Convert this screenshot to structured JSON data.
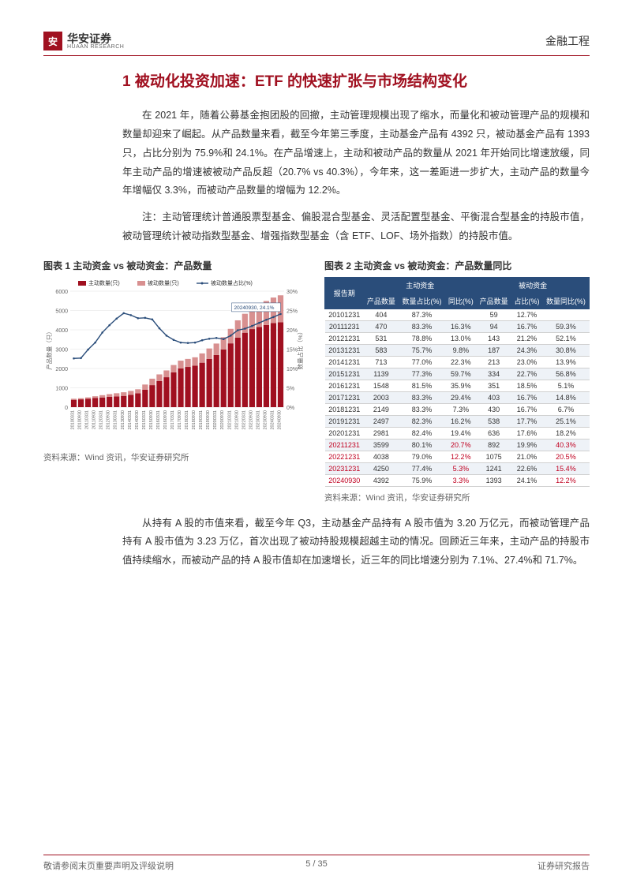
{
  "header": {
    "logo_cn": "华安证券",
    "logo_en": "HUAAN RESEARCH",
    "right": "金融工程"
  },
  "section_title": "1 被动化投资加速：ETF 的快速扩张与市场结构变化",
  "para1": "在 2021 年，随着公募基金抱团股的回撤，主动管理规模出现了缩水，而量化和被动管理产品的规模和数量却迎来了崛起。从产品数量来看，截至今年第三季度，主动基金产品有 4392 只，被动基金产品有 1393 只，占比分别为 75.9%和 24.1%。在产品增速上，主动和被动产品的数量从 2021 年开始同比增速放缓，同年主动产品的增速被被动产品反超（20.7% vs 40.3%），今年来，这一差距进一步扩大，主动产品的数量今年增幅仅 3.3%，而被动产品数量的增幅为 12.2%。",
  "para2": "注：主动管理统计普通股票型基金、偏股混合型基金、灵活配置型基金、平衡混合型基金的持股市值，被动管理统计被动指数型基金、增强指数型基金（含 ETF、LOF、场外指数）的持股市值。",
  "para3": "从持有 A 股的市值来看，截至今年 Q3，主动基金产品持有 A 股市值为 3.20 万亿元，而被动管理产品持有 A 股市值为 3.23 万亿，首次出现了被动持股规模超越主动的情况。回顾近三年来，主动产品的持股市值持续缩水，而被动产品的持 A 股市值却在加速增长，近三年的同比增速分别为 7.1%、27.4%和 71.7%。",
  "chart1": {
    "title": "图表 1 主动资金 vs 被动资金：产品数量",
    "legend": [
      "主动数量(只)",
      "被动数量(只)",
      "被动数量占比(%)"
    ],
    "y_left_max": 6000,
    "y_left_step": 1000,
    "y_right_max": 30,
    "y_right_step": 5,
    "y_left_label": "产品数量（只）",
    "y_right_label": "数量占比（%）",
    "annotation": "20240930, 24.1%",
    "colors": {
      "active_bar": "#a01020",
      "passive_bar": "#d89090",
      "line": "#2a4d7a",
      "grid": "#e0e0e0",
      "bg": "#ffffff"
    },
    "x_labels": [
      "20100331",
      "20100930",
      "20110331",
      "20110930",
      "20120331",
      "20120930",
      "20130331",
      "20130930",
      "20140331",
      "20140930",
      "20150331",
      "20150930",
      "20160331",
      "20160930",
      "20170331",
      "20170930",
      "20180331",
      "20180930",
      "20190331",
      "20190930",
      "20200331",
      "20200930",
      "20210331",
      "20210930",
      "20220331",
      "20220930",
      "20230331",
      "20230930",
      "20240331",
      "20240930"
    ],
    "active_values": [
      380,
      404,
      430,
      470,
      500,
      531,
      555,
      583,
      640,
      713,
      900,
      1139,
      1350,
      1548,
      1800,
      2003,
      2080,
      2149,
      2300,
      2497,
      2700,
      2981,
      3300,
      3599,
      3850,
      4038,
      4150,
      4250,
      4350,
      4392
    ],
    "passive_values": [
      55,
      59,
      75,
      94,
      120,
      143,
      165,
      187,
      200,
      213,
      270,
      334,
      345,
      351,
      380,
      403,
      415,
      430,
      480,
      538,
      590,
      636,
      750,
      892,
      980,
      1075,
      1160,
      1241,
      1320,
      1393
    ],
    "ratio_values": [
      12.6,
      12.7,
      14.9,
      16.7,
      19.3,
      21.2,
      22.9,
      24.3,
      23.8,
      23.0,
      23.1,
      22.7,
      20.4,
      18.5,
      17.4,
      16.7,
      16.6,
      16.7,
      17.3,
      17.7,
      17.9,
      17.6,
      18.5,
      19.9,
      20.3,
      21.0,
      21.8,
      22.6,
      23.3,
      24.1
    ]
  },
  "chart2": {
    "title": "图表 2 主动资金 vs 被动资金：产品数量同比",
    "group_headers": [
      "主动资金",
      "被动资金"
    ],
    "columns": [
      "报告期",
      "产品数量",
      "数量占比(%)",
      "同比(%)",
      "产品数量",
      "占比(%)",
      "数量同比(%)"
    ],
    "rows": [
      {
        "d": [
          "20101231",
          "404",
          "87.3%",
          "",
          "59",
          "12.7%",
          ""
        ],
        "hl": false
      },
      {
        "d": [
          "20111231",
          "470",
          "83.3%",
          "16.3%",
          "94",
          "16.7%",
          "59.3%"
        ],
        "hl": false
      },
      {
        "d": [
          "20121231",
          "531",
          "78.8%",
          "13.0%",
          "143",
          "21.2%",
          "52.1%"
        ],
        "hl": false
      },
      {
        "d": [
          "20131231",
          "583",
          "75.7%",
          "9.8%",
          "187",
          "24.3%",
          "30.8%"
        ],
        "hl": false
      },
      {
        "d": [
          "20141231",
          "713",
          "77.0%",
          "22.3%",
          "213",
          "23.0%",
          "13.9%"
        ],
        "hl": false
      },
      {
        "d": [
          "20151231",
          "1139",
          "77.3%",
          "59.7%",
          "334",
          "22.7%",
          "56.8%"
        ],
        "hl": false
      },
      {
        "d": [
          "20161231",
          "1548",
          "81.5%",
          "35.9%",
          "351",
          "18.5%",
          "5.1%"
        ],
        "hl": false
      },
      {
        "d": [
          "20171231",
          "2003",
          "83.3%",
          "29.4%",
          "403",
          "16.7%",
          "14.8%"
        ],
        "hl": false
      },
      {
        "d": [
          "20181231",
          "2149",
          "83.3%",
          "7.3%",
          "430",
          "16.7%",
          "6.7%"
        ],
        "hl": false
      },
      {
        "d": [
          "20191231",
          "2497",
          "82.3%",
          "16.2%",
          "538",
          "17.7%",
          "25.1%"
        ],
        "hl": false
      },
      {
        "d": [
          "20201231",
          "2981",
          "82.4%",
          "19.4%",
          "636",
          "17.6%",
          "18.2%"
        ],
        "hl": false
      },
      {
        "d": [
          "20211231",
          "3599",
          "80.1%",
          "20.7%",
          "892",
          "19.9%",
          "40.3%"
        ],
        "hl": true
      },
      {
        "d": [
          "20221231",
          "4038",
          "79.0%",
          "12.2%",
          "1075",
          "21.0%",
          "20.5%"
        ],
        "hl": true
      },
      {
        "d": [
          "20231231",
          "4250",
          "77.4%",
          "5.3%",
          "1241",
          "22.6%",
          "15.4%"
        ],
        "hl": true
      },
      {
        "d": [
          "20240930",
          "4392",
          "75.9%",
          "3.3%",
          "1393",
          "24.1%",
          "12.2%"
        ],
        "hl": true
      }
    ]
  },
  "source": "资料来源：Wind 资讯，华安证券研究所",
  "footer": {
    "left": "敬请参阅末页重要声明及评级说明",
    "center": "5 / 35",
    "right": "证券研究报告"
  }
}
